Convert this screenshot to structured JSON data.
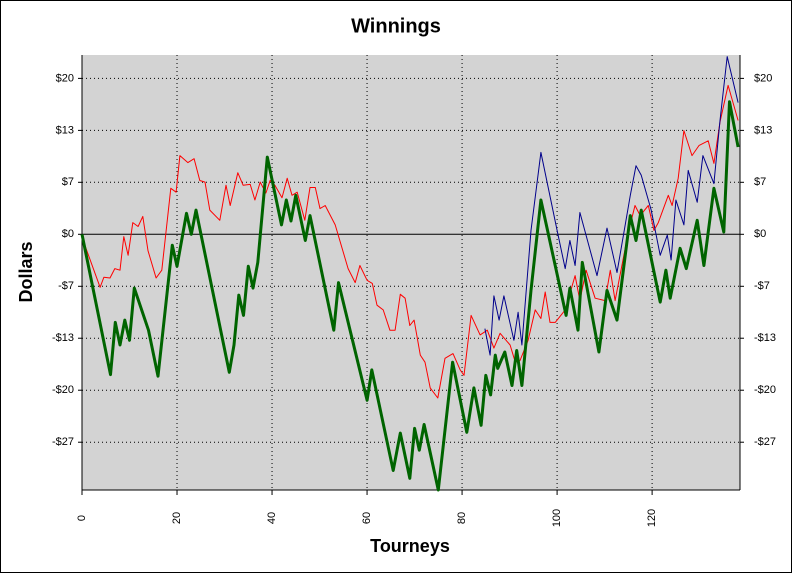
{
  "chart_data": {
    "type": "line",
    "title": "Winnings",
    "x_label": "Tourneys",
    "y_label": "Dollars",
    "xlim": [
      0,
      138.5
    ],
    "ylim": [
      -32.8,
      23
    ],
    "xticks": [
      0,
      20,
      40,
      60,
      80,
      100,
      120
    ],
    "yticks": [
      {
        "value": 20,
        "label": "$20"
      },
      {
        "value": 13.33,
        "label": "$13"
      },
      {
        "value": 6.67,
        "label": "$7"
      },
      {
        "value": 0,
        "label": "$0"
      },
      {
        "value": -6.67,
        "label": "-$7"
      },
      {
        "value": -13.33,
        "label": "-$13"
      },
      {
        "value": -20,
        "label": "-$20"
      },
      {
        "value": -26.67,
        "label": "-$27"
      }
    ],
    "grid": true,
    "series": [
      {
        "color": "#ff0000",
        "x": [
          0,
          3.8,
          4.6,
          5.9,
          6.9,
          8,
          8.8,
          9.7,
          10.7,
          11.8,
          12.8,
          13.9,
          15.6,
          16.8,
          18.7,
          19.8,
          20.6,
          22.3,
          23.6,
          24.8,
          25.9,
          26.9,
          29,
          30.3,
          31.2,
          32.8,
          33.9,
          35.4,
          36.4,
          37.5,
          38.7,
          39.6,
          40.6,
          42.1,
          43.2,
          44.2,
          45.3,
          46.9,
          48,
          49.1,
          50.1,
          51.2,
          53.3,
          56,
          57.5,
          58.5,
          60,
          61.1,
          62.1,
          63.4,
          64.8,
          65.9,
          67,
          68,
          69,
          69.9,
          71.2,
          72.2,
          73.3,
          74.9,
          76.4,
          78.1,
          79.6,
          80.4,
          81.9,
          83.8,
          85.3,
          86.7,
          88,
          90.1,
          91.2,
          92.2,
          93.9,
          95.4,
          96.6,
          97.5,
          98.5,
          99.6,
          101.7,
          103.8,
          104.8,
          106.1,
          108,
          110.1,
          111.2,
          112.2,
          115,
          116.4,
          117.5,
          119.2,
          120.4,
          121.3,
          123.4,
          124.2,
          125.5,
          126.7,
          128.4,
          129.9,
          131.8,
          133,
          134.3,
          136,
          138.1
        ],
        "values": [
          -0.4,
          -6.8,
          -5.5,
          -5.6,
          -4.4,
          -4.6,
          -0.3,
          -2.7,
          1.5,
          1,
          2.3,
          -2.1,
          -5.6,
          -4.6,
          5.9,
          5.4,
          10.1,
          9.2,
          9.7,
          6.9,
          6.7,
          3.1,
          1.8,
          6.3,
          3.7,
          7.9,
          6.3,
          6.4,
          4.4,
          6.7,
          5.3,
          6.9,
          6.3,
          4.7,
          7.2,
          5,
          5.4,
          1.8,
          6,
          6,
          3.3,
          3.7,
          1.2,
          -4.4,
          -6.2,
          -4,
          -5.9,
          -6.3,
          -9.1,
          -9.7,
          -12.3,
          -12.3,
          -7.7,
          -8.2,
          -11.7,
          -11,
          -15.5,
          -16.4,
          -19.7,
          -21,
          -15.9,
          -15.3,
          -17.4,
          -18.1,
          -10.4,
          -12.9,
          -12.3,
          -14.6,
          -12.7,
          -14.2,
          -16.4,
          -16.2,
          -13.6,
          -9.7,
          -10.8,
          -7.4,
          -11.3,
          -11.3,
          -9.7,
          -5.3,
          -8.5,
          -4.6,
          -8.2,
          -8.5,
          -4.6,
          -8.5,
          0.3,
          3.7,
          2.4,
          3.7,
          0.5,
          1.5,
          5,
          3.7,
          7.2,
          13.3,
          10.1,
          11.4,
          12,
          9.1,
          14.4,
          19.1,
          14.6
        ]
      },
      {
        "color": "#00008b",
        "x": [
          84.8,
          85.9,
          86.7,
          87.8,
          88.8,
          90.9,
          91.8,
          92.6,
          94.5,
          96.6,
          100,
          101.7,
          102.7,
          103.8,
          104.8,
          108.4,
          110.5,
          112.6,
          115.4,
          116.6,
          117.7,
          119.8,
          121.7,
          123.2,
          124,
          125,
          126.7,
          127.6,
          129.5,
          130.7,
          133,
          134.3,
          135.8,
          138.1
        ],
        "values": [
          -12.1,
          -15.5,
          -7.9,
          -11,
          -7.9,
          -13.6,
          -10,
          -14.2,
          0.5,
          10.5,
          0.5,
          -4.4,
          -0.8,
          -4,
          2.8,
          -5.3,
          0.8,
          -4.9,
          5,
          8.8,
          7.6,
          3.1,
          -2.7,
          -0.1,
          -3.3,
          4.4,
          1.2,
          8.2,
          4.1,
          10.1,
          6.5,
          14.6,
          22.8,
          16.9
        ]
      },
      {
        "color": "#006400",
        "x": [
          0,
          6,
          7,
          8,
          9,
          10,
          11,
          14,
          16,
          19,
          20,
          22,
          23,
          24,
          31,
          32,
          33,
          34,
          35,
          36,
          37,
          39,
          42,
          43,
          44,
          45,
          47,
          48,
          53,
          54,
          60,
          61,
          65.5,
          67,
          69,
          70,
          71,
          72,
          75,
          78,
          81,
          82.5,
          84,
          85,
          86,
          87,
          87.5,
          89,
          90.5,
          91.5,
          92.6,
          94.5,
          96.6,
          101.9,
          102.7,
          104.4,
          105.3,
          108.8,
          110.5,
          112.6,
          115.4,
          116.6,
          117.7,
          121.7,
          122.9,
          123.8,
          125.9,
          127.2,
          129.5,
          130.9,
          133,
          135.1,
          136.3,
          138.1
        ],
        "values": [
          0,
          -18,
          -11.3,
          -14.2,
          -11,
          -13.6,
          -6.9,
          -12.3,
          -18.2,
          -1.4,
          -4.1,
          2.7,
          0,
          3.1,
          -17.7,
          -14.2,
          -7.8,
          -10.4,
          -4.1,
          -6.9,
          -3.6,
          9.9,
          1.2,
          4.4,
          1.7,
          5,
          -0.8,
          2.4,
          -12.3,
          -6.2,
          -21.3,
          -17.4,
          -30.3,
          -25.5,
          -31.3,
          -24.9,
          -27.7,
          -24.4,
          -32.8,
          -16.4,
          -25.4,
          -19.7,
          -24.5,
          -18.1,
          -20.6,
          -15.5,
          -17.2,
          -15.1,
          -19.4,
          -14.9,
          -19.4,
          -7.2,
          4.4,
          -10.4,
          -6.9,
          -12.3,
          -3.6,
          -15.1,
          -7.2,
          -11,
          2.4,
          -0.8,
          3.1,
          -8.7,
          -4.6,
          -8.2,
          -1.8,
          -4.4,
          1.8,
          -4,
          5.9,
          0.3,
          17,
          11.2
        ]
      }
    ]
  }
}
